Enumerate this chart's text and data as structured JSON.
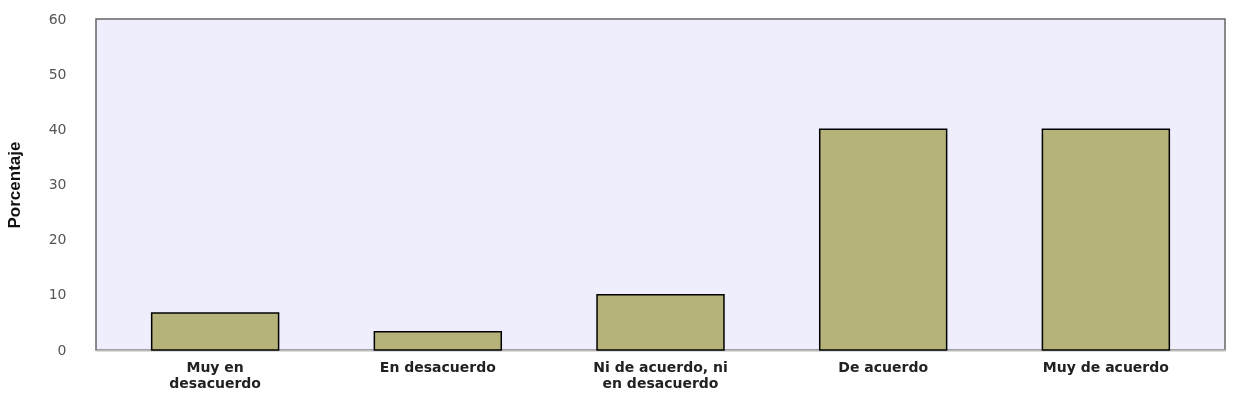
{
  "chart_data": {
    "type": "bar",
    "ylabel": "Porcentaje",
    "categories": [
      "Muy en\ndesacuerdo",
      "En desacuerdo",
      "Ni de acuerdo, ni\nen desacuerdo",
      "De acuerdo",
      "Muy de acuerdo"
    ],
    "values": [
      6.7,
      3.3,
      10,
      40,
      40
    ],
    "color": "#b5b27a",
    "ylim": [
      0,
      60
    ],
    "yticks": [
      0,
      10,
      20,
      30,
      40,
      50,
      60
    ],
    "grid": false
  }
}
